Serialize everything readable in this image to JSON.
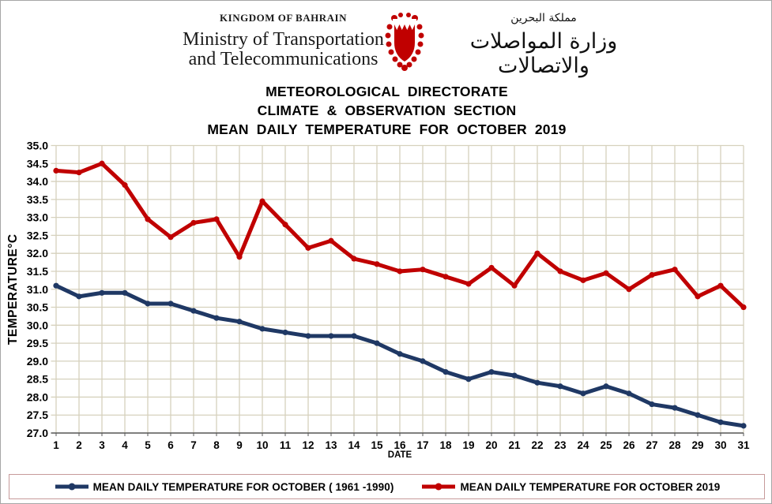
{
  "header": {
    "kingdom_label": "KINGDOM OF BAHRAIN",
    "ministry_line1": "Ministry of Transportation",
    "ministry_line2": "and Telecommunications",
    "arabic_kingdom": "مملكة البحرين",
    "arabic_ministry": "وزارة المواصلات والاتصالات",
    "emblem_icon": "bahrain-coat-of-arms"
  },
  "titles": {
    "line1": "METEOROLOGICAL  DIRECTORATE",
    "line2": "CLIMATE  & OBSERVATION  SECTION",
    "line3": "MEAN  DAILY  TEMPERATURE  FOR OCTOBER  2019"
  },
  "chart_data": {
    "type": "line",
    "x": [
      1,
      2,
      3,
      4,
      5,
      6,
      7,
      8,
      9,
      10,
      11,
      12,
      13,
      14,
      15,
      16,
      17,
      18,
      19,
      20,
      21,
      22,
      23,
      24,
      25,
      26,
      27,
      28,
      29,
      30,
      31
    ],
    "xlabel": "DATE",
    "ylabel": "TEMPERATURE°C",
    "ylim": [
      27.0,
      35.0
    ],
    "ytick_step": 0.5,
    "grid": true,
    "legend_position": "bottom",
    "colors": {
      "grid": "#d6d1bd",
      "axis": "#595959",
      "normal_series": "#1f3864",
      "year2019_series": "#c00000",
      "legend_border": "#c79a9a"
    },
    "series": [
      {
        "name": "MEAN DAILY TEMPERATURE FOR OCTOBER ( 1961 -1990)",
        "color_key": "normal_series",
        "values": [
          31.1,
          30.8,
          30.9,
          30.9,
          30.6,
          30.6,
          30.4,
          30.2,
          30.1,
          29.9,
          29.8,
          29.7,
          29.7,
          29.7,
          29.5,
          29.2,
          29.0,
          28.7,
          28.5,
          28.7,
          28.6,
          28.4,
          28.3,
          28.1,
          28.3,
          28.1,
          27.8,
          27.7,
          27.5,
          27.3,
          27.2
        ]
      },
      {
        "name": "MEAN DAILY TEMPERATURE FOR OCTOBER 2019",
        "color_key": "year2019_series",
        "values": [
          34.3,
          34.25,
          34.5,
          33.9,
          32.95,
          32.45,
          32.85,
          32.95,
          31.9,
          33.45,
          32.8,
          32.15,
          32.35,
          31.85,
          31.7,
          31.5,
          31.55,
          31.35,
          31.15,
          31.6,
          31.1,
          32.0,
          31.5,
          31.25,
          31.45,
          31.0,
          31.4,
          31.55,
          30.8,
          31.1,
          30.5
        ]
      }
    ]
  },
  "legend": {
    "items": [
      {
        "label": "MEAN DAILY TEMPERATURE FOR OCTOBER ( 1961 -1990)",
        "color": "#1f3864"
      },
      {
        "label": "MEAN DAILY TEMPERATURE FOR OCTOBER 2019",
        "color": "#c00000"
      }
    ]
  }
}
